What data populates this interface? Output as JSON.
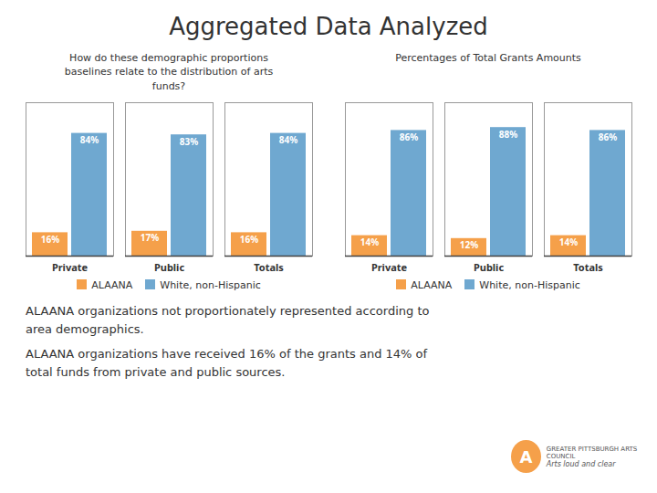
{
  "title": "Aggregated Data Analyzed",
  "annotations": [
    "ALAANA organizations not proportionately represented according to\narea demographics.",
    "ALAANA organizations have received 16% of the grants and 14% of\ntotal funds from private and public sources.",
    "A",
    "GREATER PITTSBURGH ARTS COUNCIL",
    "Arts loud and clear"
  ],
  "chart_data": [
    {
      "type": "bar",
      "subtitle": "How do these demographic proportions\nbaselines relate to the distribution of arts\nfunds?",
      "categories": [
        "Private",
        "Public",
        "Totals"
      ],
      "series": [
        {
          "name": "ALAANA",
          "color": "#F5A04A",
          "values": [
            16,
            17,
            16
          ],
          "value_labels": [
            "16%",
            "17%",
            "16%"
          ]
        },
        {
          "name": "White, non-Hispanic",
          "color": "#6FA8D0",
          "values": [
            84,
            83,
            84
          ],
          "value_labels": [
            "84%",
            "83%",
            "84%"
          ]
        }
      ],
      "ylim": [
        0,
        105
      ],
      "grid": false,
      "legend": "bottom",
      "data_labels": true,
      "tick_labels": "x"
    },
    {
      "type": "bar",
      "subtitle": "Percentages of Total Grants Amounts",
      "categories": [
        "Private",
        "Public",
        "Totals"
      ],
      "series": [
        {
          "name": "ALAANA",
          "color": "#F5A04A",
          "values": [
            14,
            12,
            14
          ],
          "value_labels": [
            "14%",
            "12%",
            "14%"
          ]
        },
        {
          "name": "White, non-Hispanic",
          "color": "#6FA8D0",
          "values": [
            86,
            88,
            86
          ],
          "value_labels": [
            "86%",
            "88%",
            "86%"
          ]
        }
      ],
      "ylim": [
        0,
        105
      ],
      "grid": false,
      "legend": "bottom",
      "data_labels": true,
      "tick_labels": "x"
    }
  ]
}
